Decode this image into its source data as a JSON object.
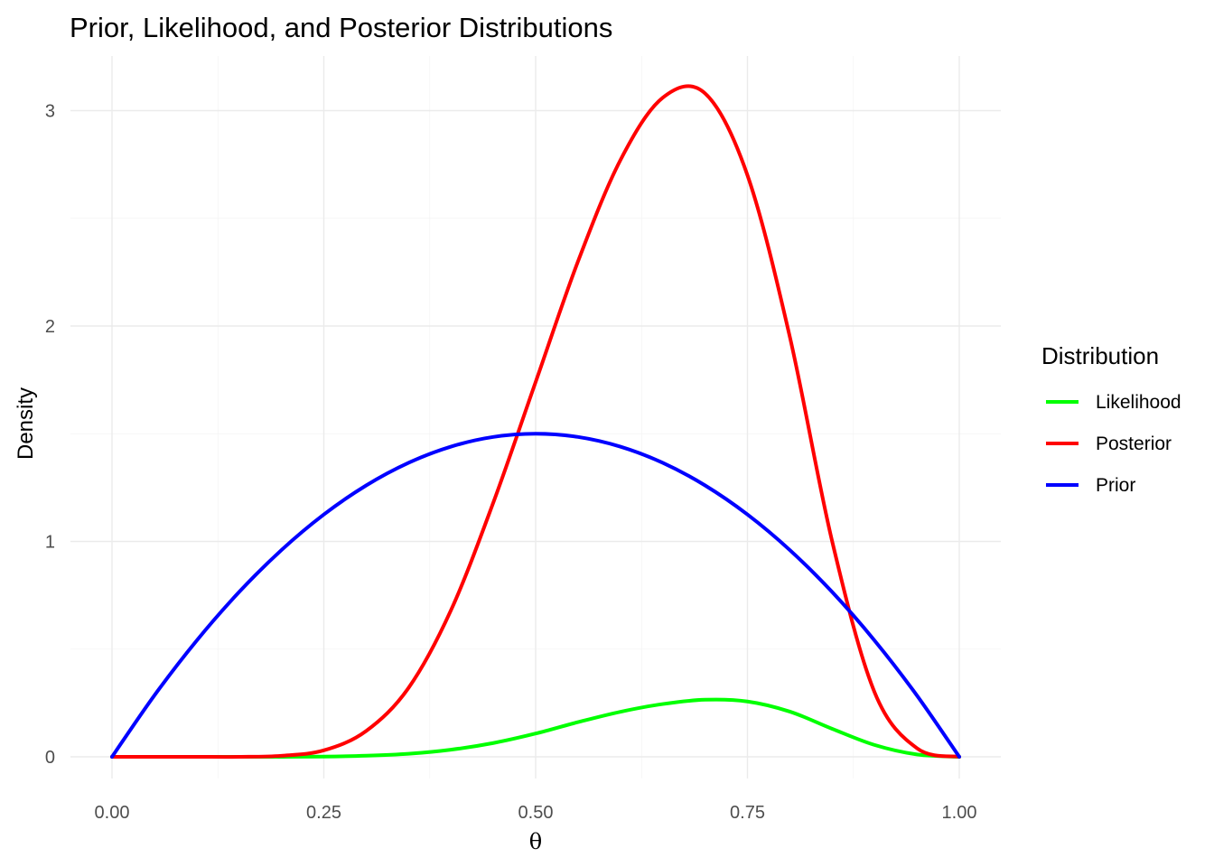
{
  "chart_data": {
    "type": "line",
    "title": "Prior, Likelihood, and Posterior Distributions",
    "xlabel": "θ",
    "ylabel": "Density",
    "xlim": [
      0,
      1
    ],
    "ylim": [
      0,
      3.2
    ],
    "x_ticks": [
      "0.00",
      "0.25",
      "0.50",
      "0.75",
      "1.00"
    ],
    "y_ticks": [
      "0",
      "1",
      "2",
      "3"
    ],
    "grid": true,
    "legend": {
      "title": "Distribution",
      "position": "right",
      "entries": [
        "Likelihood",
        "Posterior",
        "Prior"
      ]
    },
    "x": [
      0,
      0.05,
      0.1,
      0.15,
      0.2,
      0.25,
      0.3,
      0.35,
      0.4,
      0.45,
      0.5,
      0.55,
      0.6,
      0.65,
      0.7,
      0.75,
      0.8,
      0.85,
      0.9,
      0.95,
      1.0
    ],
    "series": [
      {
        "name": "Likelihood",
        "color": "#00ff00",
        "values": [
          0,
          0,
          0,
          0,
          0,
          0.001,
          0.005,
          0.014,
          0.033,
          0.064,
          0.108,
          0.161,
          0.209,
          0.245,
          0.265,
          0.257,
          0.21,
          0.13,
          0.055,
          0.011,
          0
        ]
      },
      {
        "name": "Posterior",
        "color": "#ff0000",
        "values": [
          0,
          0,
          0,
          0,
          0.005,
          0.03,
          0.12,
          0.32,
          0.68,
          1.18,
          1.74,
          2.3,
          2.77,
          3.06,
          3.08,
          2.7,
          1.95,
          1.0,
          0.3,
          0.04,
          0
        ]
      },
      {
        "name": "Prior",
        "color": "#0000ff",
        "values": [
          0,
          0.285,
          0.54,
          0.765,
          0.96,
          1.125,
          1.26,
          1.365,
          1.44,
          1.485,
          1.5,
          1.485,
          1.44,
          1.365,
          1.26,
          1.125,
          0.96,
          0.765,
          0.54,
          0.285,
          0
        ]
      }
    ]
  }
}
